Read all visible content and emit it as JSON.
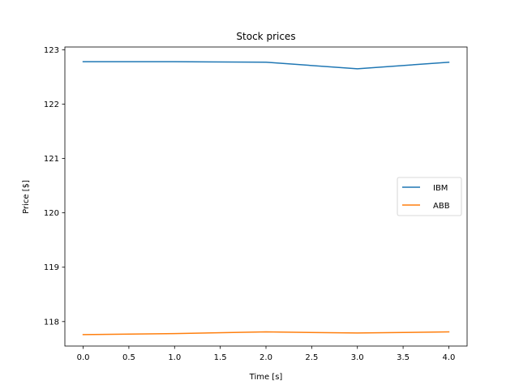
{
  "chart_data": {
    "type": "line",
    "title": "Stock prices",
    "xlabel": "Time [s]",
    "ylabel": "Price [$]",
    "x": [
      0,
      1,
      2,
      3,
      4
    ],
    "xlim": [
      -0.2,
      4.2
    ],
    "ylim": [
      117.55,
      123.05
    ],
    "xticks": [
      0.0,
      0.5,
      1.0,
      1.5,
      2.0,
      2.5,
      3.0,
      3.5,
      4.0
    ],
    "xtick_labels": [
      "0.0",
      "0.5",
      "1.0",
      "1.5",
      "2.0",
      "2.5",
      "3.0",
      "3.5",
      "4.0"
    ],
    "yticks": [
      118,
      119,
      120,
      121,
      122,
      123
    ],
    "ytick_labels": [
      "118",
      "119",
      "120",
      "121",
      "122",
      "123"
    ],
    "grid": false,
    "legend_position": "center-right",
    "series": [
      {
        "name": "IBM",
        "color": "#1f77b4",
        "values": [
          122.78,
          122.78,
          122.77,
          122.65,
          122.77
        ]
      },
      {
        "name": "ABB",
        "color": "#ff7f0e",
        "values": [
          117.76,
          117.78,
          117.81,
          117.79,
          117.81
        ]
      }
    ]
  }
}
